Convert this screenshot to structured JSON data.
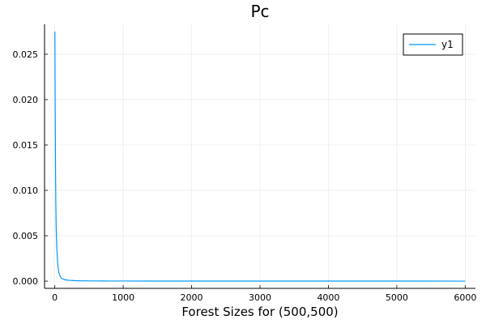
{
  "chart_data": {
    "type": "line",
    "title": "Pc",
    "xlabel": "Forest Sizes for (500,500)",
    "ylabel": "",
    "xlim": [
      -150,
      6150
    ],
    "ylim": [
      -0.0008,
      0.0283
    ],
    "xticks": [
      0,
      1000,
      2000,
      3000,
      4000,
      5000,
      6000
    ],
    "xtick_labels": [
      "0",
      "1000",
      "2000",
      "3000",
      "4000",
      "5000",
      "6000"
    ],
    "yticks": [
      0.0,
      0.005,
      0.01,
      0.015,
      0.02,
      0.025
    ],
    "ytick_labels": [
      "0.000",
      "0.005",
      "0.010",
      "0.015",
      "0.020",
      "0.025"
    ],
    "grid": true,
    "legend_position": "top-right",
    "series": [
      {
        "name": "y1",
        "color": "#009AFA",
        "x": [
          1,
          5,
          10,
          15,
          20,
          30,
          40,
          50,
          60,
          80,
          100,
          150,
          200,
          300,
          400,
          600,
          800,
          1000,
          1500,
          2000,
          3000,
          4000,
          5000,
          6000
        ],
        "y": [
          0.0275,
          0.02,
          0.013,
          0.0085,
          0.0058,
          0.0036,
          0.0022,
          0.0014,
          0.0009,
          0.0005,
          0.0003,
          0.00015,
          0.0001,
          5e-05,
          3e-05,
          2e-05,
          1e-05,
          8e-06,
          5e-06,
          3e-06,
          2e-06,
          1e-06,
          5e-07,
          2e-07
        ]
      }
    ]
  }
}
